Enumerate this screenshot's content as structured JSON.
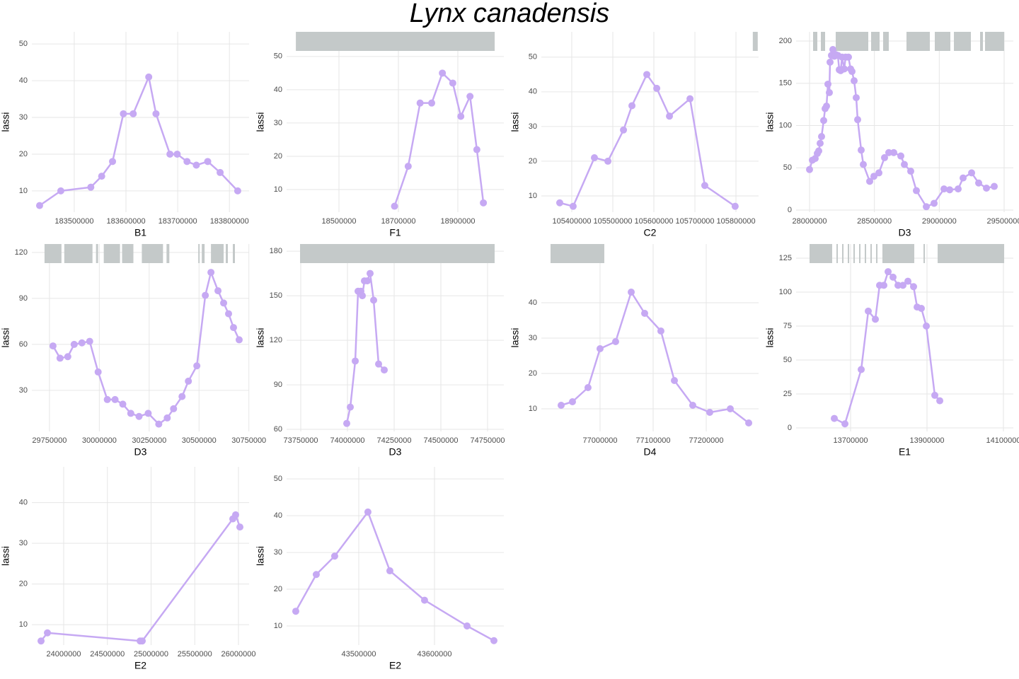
{
  "title": "Lynx canadensis",
  "chart_data": [
    {
      "type": "line",
      "x_label": "B1",
      "y_label": "lassi",
      "color": "#c6a9f3",
      "region_color": "#c4c9c9",
      "x": [
        183433000,
        183474000,
        183532000,
        183553000,
        183574000,
        183595000,
        183614000,
        183644000,
        183658000,
        183685000,
        183699000,
        183718000,
        183736000,
        183758000,
        183782000,
        183816000
      ],
      "values": [
        6,
        10,
        11,
        14,
        18,
        31,
        31,
        41,
        31,
        20,
        20,
        18,
        17,
        18,
        15,
        10
      ],
      "regions": [],
      "xlim": [
        183418000,
        183838000
      ],
      "xticks": [
        183500000,
        183600000,
        183700000,
        183800000
      ],
      "ylim": [
        4.2,
        53.3
      ],
      "yticks": [
        10,
        20,
        30,
        40,
        50
      ]
    },
    {
      "type": "line",
      "x_label": "F1",
      "y_label": "lassi",
      "color": "#c6a9f3",
      "region_color": "#c4c9c9",
      "x": [
        18687000,
        18733000,
        18773000,
        18812000,
        18848000,
        18883000,
        18910000,
        18941000,
        18964000,
        18986000
      ],
      "values": [
        5,
        17,
        36,
        36,
        45,
        42,
        32,
        38,
        22,
        6
      ],
      "regions": [
        [
          18355000,
          19024000
        ]
      ],
      "xlim": [
        18323800,
        19054800
      ],
      "xticks": [
        18500000,
        18700000,
        18900000
      ],
      "ylim": [
        3.2,
        57.4
      ],
      "yticks": [
        10,
        20,
        30,
        40,
        50
      ]
    },
    {
      "type": "line",
      "x_label": "C2",
      "y_label": "lassi",
      "color": "#c6a9f3",
      "region_color": "#c4c9c9",
      "x": [
        105370700,
        105403400,
        105455200,
        105488000,
        105526000,
        105546600,
        105582800,
        105607000,
        105638000,
        105688000,
        105724000,
        105798000
      ],
      "values": [
        8,
        7,
        21,
        20,
        29,
        36,
        45,
        41,
        33,
        38,
        13,
        7
      ],
      "regions": [
        [
          105841000,
          105853000
        ]
      ],
      "xlim": [
        105325900,
        105855100
      ],
      "xticks": [
        105400000,
        105500000,
        105600000,
        105700000,
        105800000
      ],
      "ylim": [
        5.3,
        57.3
      ],
      "yticks": [
        10,
        20,
        30,
        40,
        50
      ]
    },
    {
      "type": "line",
      "x_label": "D3",
      "y_label": "lassi",
      "color": "#c6a9f3",
      "region_color": "#c4c9c9",
      "x": [
        28000000,
        28021800,
        28043600,
        28060000,
        28070900,
        28081800,
        28092700,
        28109100,
        28120000,
        28130900,
        28141800,
        28152700,
        28158200,
        28169100,
        28180000,
        28190900,
        28201800,
        28218200,
        28229100,
        28240000,
        28250900,
        28267300,
        28278200,
        28300000,
        28316400,
        28327300,
        28343700,
        28360000,
        28370900,
        28398200,
        28414600,
        28463700,
        28496400,
        28534600,
        28578200,
        28610900,
        28649100,
        28703700,
        28731000,
        28780100,
        28823700,
        28900100,
        28960100,
        29036500,
        29080100,
        29145600,
        29183800,
        29249300,
        29303700,
        29363700,
        29423700
      ],
      "values": [
        48,
        59,
        61,
        67,
        70,
        79,
        87,
        106,
        120,
        123,
        149,
        139,
        175,
        183,
        190,
        182,
        184,
        183,
        166,
        165,
        181,
        167,
        181,
        181,
        167,
        164,
        153,
        133,
        107,
        71,
        54,
        34,
        40,
        44,
        62,
        68,
        68,
        64,
        54,
        46,
        23,
        4,
        8,
        25,
        24,
        25,
        38,
        44,
        32,
        26,
        28
      ],
      "regions": [
        [
          28027300,
          28060000
        ],
        [
          28087300,
          28120000
        ],
        [
          28201800,
          28452800
        ],
        [
          28474600,
          28540000
        ],
        [
          28567300,
          28610900
        ],
        [
          28747300,
          28927300
        ],
        [
          28965500,
          29085500
        ],
        [
          29112800,
          29243700
        ],
        [
          29314600,
          29336400
        ],
        [
          29352800,
          29500000
        ]
      ],
      "xlim": [
        27896400,
        29571000
      ],
      "xticks": [
        28000000,
        28500000,
        29000000,
        29500000
      ],
      "ylim": [
        -2.5,
        210.9
      ],
      "yticks": [
        0,
        50,
        100,
        150,
        200
      ]
    },
    {
      "type": "line",
      "x_label": "D3",
      "y_label": "lassi",
      "color": "#c6a9f3",
      "region_color": "#c4c9c9",
      "x": [
        29767700,
        29803000,
        29841900,
        29873800,
        29912700,
        29951600,
        29994000,
        30040000,
        30078800,
        30117700,
        30157800,
        30199100,
        30245000,
        30298100,
        30340500,
        30372300,
        30414800,
        30446600,
        30489000,
        30531500,
        30559800,
        30595100,
        30623400,
        30648100,
        30672900,
        30701200
      ],
      "values": [
        59,
        51,
        52,
        60,
        61,
        62,
        42,
        24,
        24,
        21,
        15,
        13,
        15,
        8,
        12,
        18,
        26,
        36,
        46,
        92,
        107,
        95,
        87,
        80,
        71,
        63
      ],
      "regions": [
        [
          29725200,
          29810100
        ],
        [
          29824300,
          29965700
        ],
        [
          29983400,
          29994000
        ],
        [
          30022300,
          30103600
        ],
        [
          30114200,
          30170800
        ],
        [
          30213200,
          30319300
        ],
        [
          30337000,
          30351100
        ],
        [
          30496100,
          30503200
        ],
        [
          30513800,
          30527900
        ],
        [
          30559800,
          30623400
        ],
        [
          30634000,
          30644600
        ],
        [
          30669400,
          30680000
        ]
      ],
      "xlim": [
        29661600,
        30751000
      ],
      "xticks": [
        29750000,
        30000000,
        30250000,
        30500000,
        30750000
      ],
      "ylim": [
        3.2,
        125.5
      ],
      "yticks": [
        30,
        60,
        90,
        120
      ]
    },
    {
      "type": "line",
      "x_label": "D3",
      "y_label": "lassi",
      "color": "#c6a9f3",
      "region_color": "#c4c9c9",
      "x": [
        73996200,
        74015200,
        74041700,
        74056800,
        74072000,
        74079600,
        74090900,
        74106100,
        74121200,
        74140200,
        74166700,
        74197000
      ],
      "values": [
        64,
        75,
        106,
        153,
        153,
        150,
        160,
        160,
        165,
        147,
        104,
        100
      ],
      "regions": [
        [
          73746200,
          74787900
        ]
      ],
      "xlim": [
        73674200,
        74837200
      ],
      "xticks": [
        73750000,
        74000000,
        74250000,
        74500000,
        74750000
      ],
      "ylim": [
        58.6,
        184.8
      ],
      "yticks": [
        60,
        90,
        120,
        150,
        180
      ]
    },
    {
      "type": "line",
      "x_label": "D4",
      "y_label": "lassi",
      "color": "#c6a9f3",
      "region_color": "#c4c9c9",
      "x": [
        76926700,
        76948000,
        76977300,
        77000000,
        77029300,
        77058700,
        77084000,
        77114600,
        77140000,
        77174600,
        77206600,
        77245300,
        77280000
      ],
      "values": [
        11,
        12,
        16,
        27,
        29,
        43,
        37,
        32,
        18,
        11,
        9,
        10,
        6
      ],
      "regions": [
        [
          76906700,
          77008000
        ]
      ],
      "xlim": [
        76889400,
        77298600
      ],
      "xticks": [
        77000000,
        77100000,
        77200000
      ],
      "ylim": [
        3.6,
        56.6
      ],
      "yticks": [
        10,
        20,
        30,
        40
      ]
    },
    {
      "type": "line",
      "x_label": "E1",
      "y_label": "lassi",
      "color": "#c6a9f3",
      "region_color": "#c4c9c9",
      "x": [
        13657400,
        13685200,
        13727800,
        13746300,
        13764800,
        13775900,
        13787000,
        13798200,
        13811100,
        13824100,
        13837000,
        13850000,
        13864800,
        13874100,
        13885200,
        13898200,
        13920400,
        13933400
      ],
      "values": [
        7,
        3,
        43,
        86,
        80,
        105,
        105,
        115,
        111,
        105,
        105,
        108,
        104,
        89,
        88,
        75,
        24,
        20
      ],
      "regions": [
        [
          13592600,
          13651800
        ],
        [
          13663000,
          13666700
        ],
        [
          13677800,
          13681500
        ],
        [
          13692600,
          13696300
        ],
        [
          13707400,
          13711100
        ],
        [
          13722200,
          13725900
        ],
        [
          13737000,
          13740700
        ],
        [
          13751900,
          13755600
        ],
        [
          13766700,
          13770400
        ],
        [
          13783300,
          13866700
        ],
        [
          13890800,
          13894500
        ],
        [
          13927800,
          14101900
        ]
      ],
      "xlim": [
        13557400,
        14125900
      ],
      "xticks": [
        13700000,
        13900000,
        14100000
      ],
      "ylim": [
        -2.6,
        135.4
      ],
      "yticks": [
        0,
        25,
        50,
        75,
        100,
        125
      ]
    },
    {
      "type": "line",
      "x_label": "E2",
      "y_label": "lassi",
      "color": "#c6a9f3",
      "region_color": "#c4c9c9",
      "x": [
        23740900,
        23813800,
        24874500,
        24898800,
        25935200,
        25967600,
        26016200
      ],
      "values": [
        6,
        8,
        6,
        6,
        36,
        37,
        34
      ],
      "regions": [],
      "xlim": [
        23635600,
        26121400
      ],
      "xticks": [
        24000000,
        24500000,
        25000000,
        25500000,
        26000000
      ],
      "ylim": [
        5.0,
        48.8
      ],
      "yticks": [
        10,
        20,
        30,
        40
      ]
    },
    {
      "type": "line",
      "x_label": "E2",
      "y_label": "lassi",
      "color": "#c6a9f3",
      "region_color": "#c4c9c9",
      "x": [
        43416800,
        43443900,
        43468200,
        43512100,
        43541100,
        43586900,
        43643000,
        43678500
      ],
      "values": [
        14,
        24,
        29,
        41,
        25,
        17,
        10,
        6
      ],
      "regions": [],
      "xlim": [
        43404700,
        43691600
      ],
      "xticks": [
        43500000,
        43600000
      ],
      "ylim": [
        4.8,
        53.3
      ],
      "yticks": [
        10,
        20,
        30,
        40,
        50
      ]
    }
  ]
}
